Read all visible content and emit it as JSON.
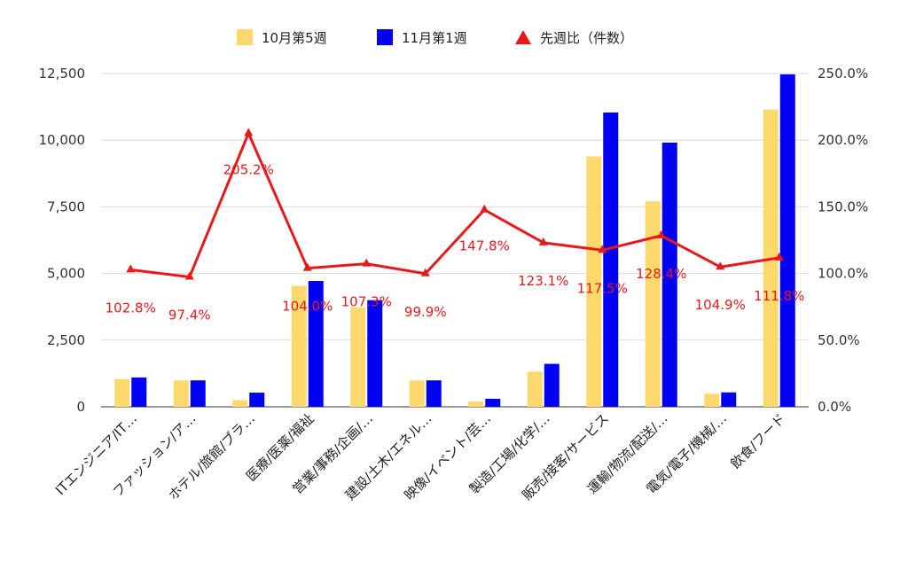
{
  "chart_data": {
    "type": "bar",
    "categories": [
      "ITエンジニア/IT…",
      "ファッション/ア…",
      "ホテル/旅館/ブラ…",
      "医療/医薬/福祉",
      "営業/事務/企画/…",
      "建設/土木/エネル…",
      "映像/イベント/芸…",
      "製造/工場/化学/…",
      "販売/接客/サービス",
      "運輸/物流/配送/…",
      "電気/電子/機械/…",
      "飲食/フード"
    ],
    "series": [
      {
        "name": "10月第5週",
        "type": "bar",
        "axis": "left",
        "color": "#fdd86c",
        "values": [
          1040,
          990,
          250,
          4540,
          3730,
          990,
          200,
          1320,
          9390,
          7710,
          490,
          11150
        ]
      },
      {
        "name": "11月第1週",
        "type": "bar",
        "axis": "left",
        "color": "#0000f5",
        "values": [
          1100,
          990,
          530,
          4720,
          4000,
          990,
          300,
          1610,
          11040,
          9910,
          540,
          12470
        ]
      },
      {
        "name": "先週比（件数）",
        "type": "line",
        "axis": "right",
        "color": "#e8191b",
        "values": [
          102.8,
          97.4,
          205.2,
          104.0,
          107.3,
          99.9,
          147.8,
          123.1,
          117.5,
          128.4,
          104.9,
          111.8
        ],
        "labels": [
          "102.8%",
          "97.4%",
          "205.2%",
          "104.0%",
          "107.3%",
          "99.9%",
          "147.8%",
          "123.1%",
          "117.5%",
          "128.4%",
          "104.9%",
          "111.8%"
        ]
      }
    ],
    "y_left": {
      "min": 0,
      "max": 12500,
      "ticks": [
        "0",
        "2,500",
        "5,000",
        "7,500",
        "10,000",
        "12,500"
      ]
    },
    "y_right": {
      "min": 0,
      "max": 250,
      "ticks": [
        "0.0%",
        "50.0%",
        "100.0%",
        "150.0%",
        "200.0%",
        "250.0%"
      ]
    },
    "legend_position": "top",
    "grid": true
  }
}
